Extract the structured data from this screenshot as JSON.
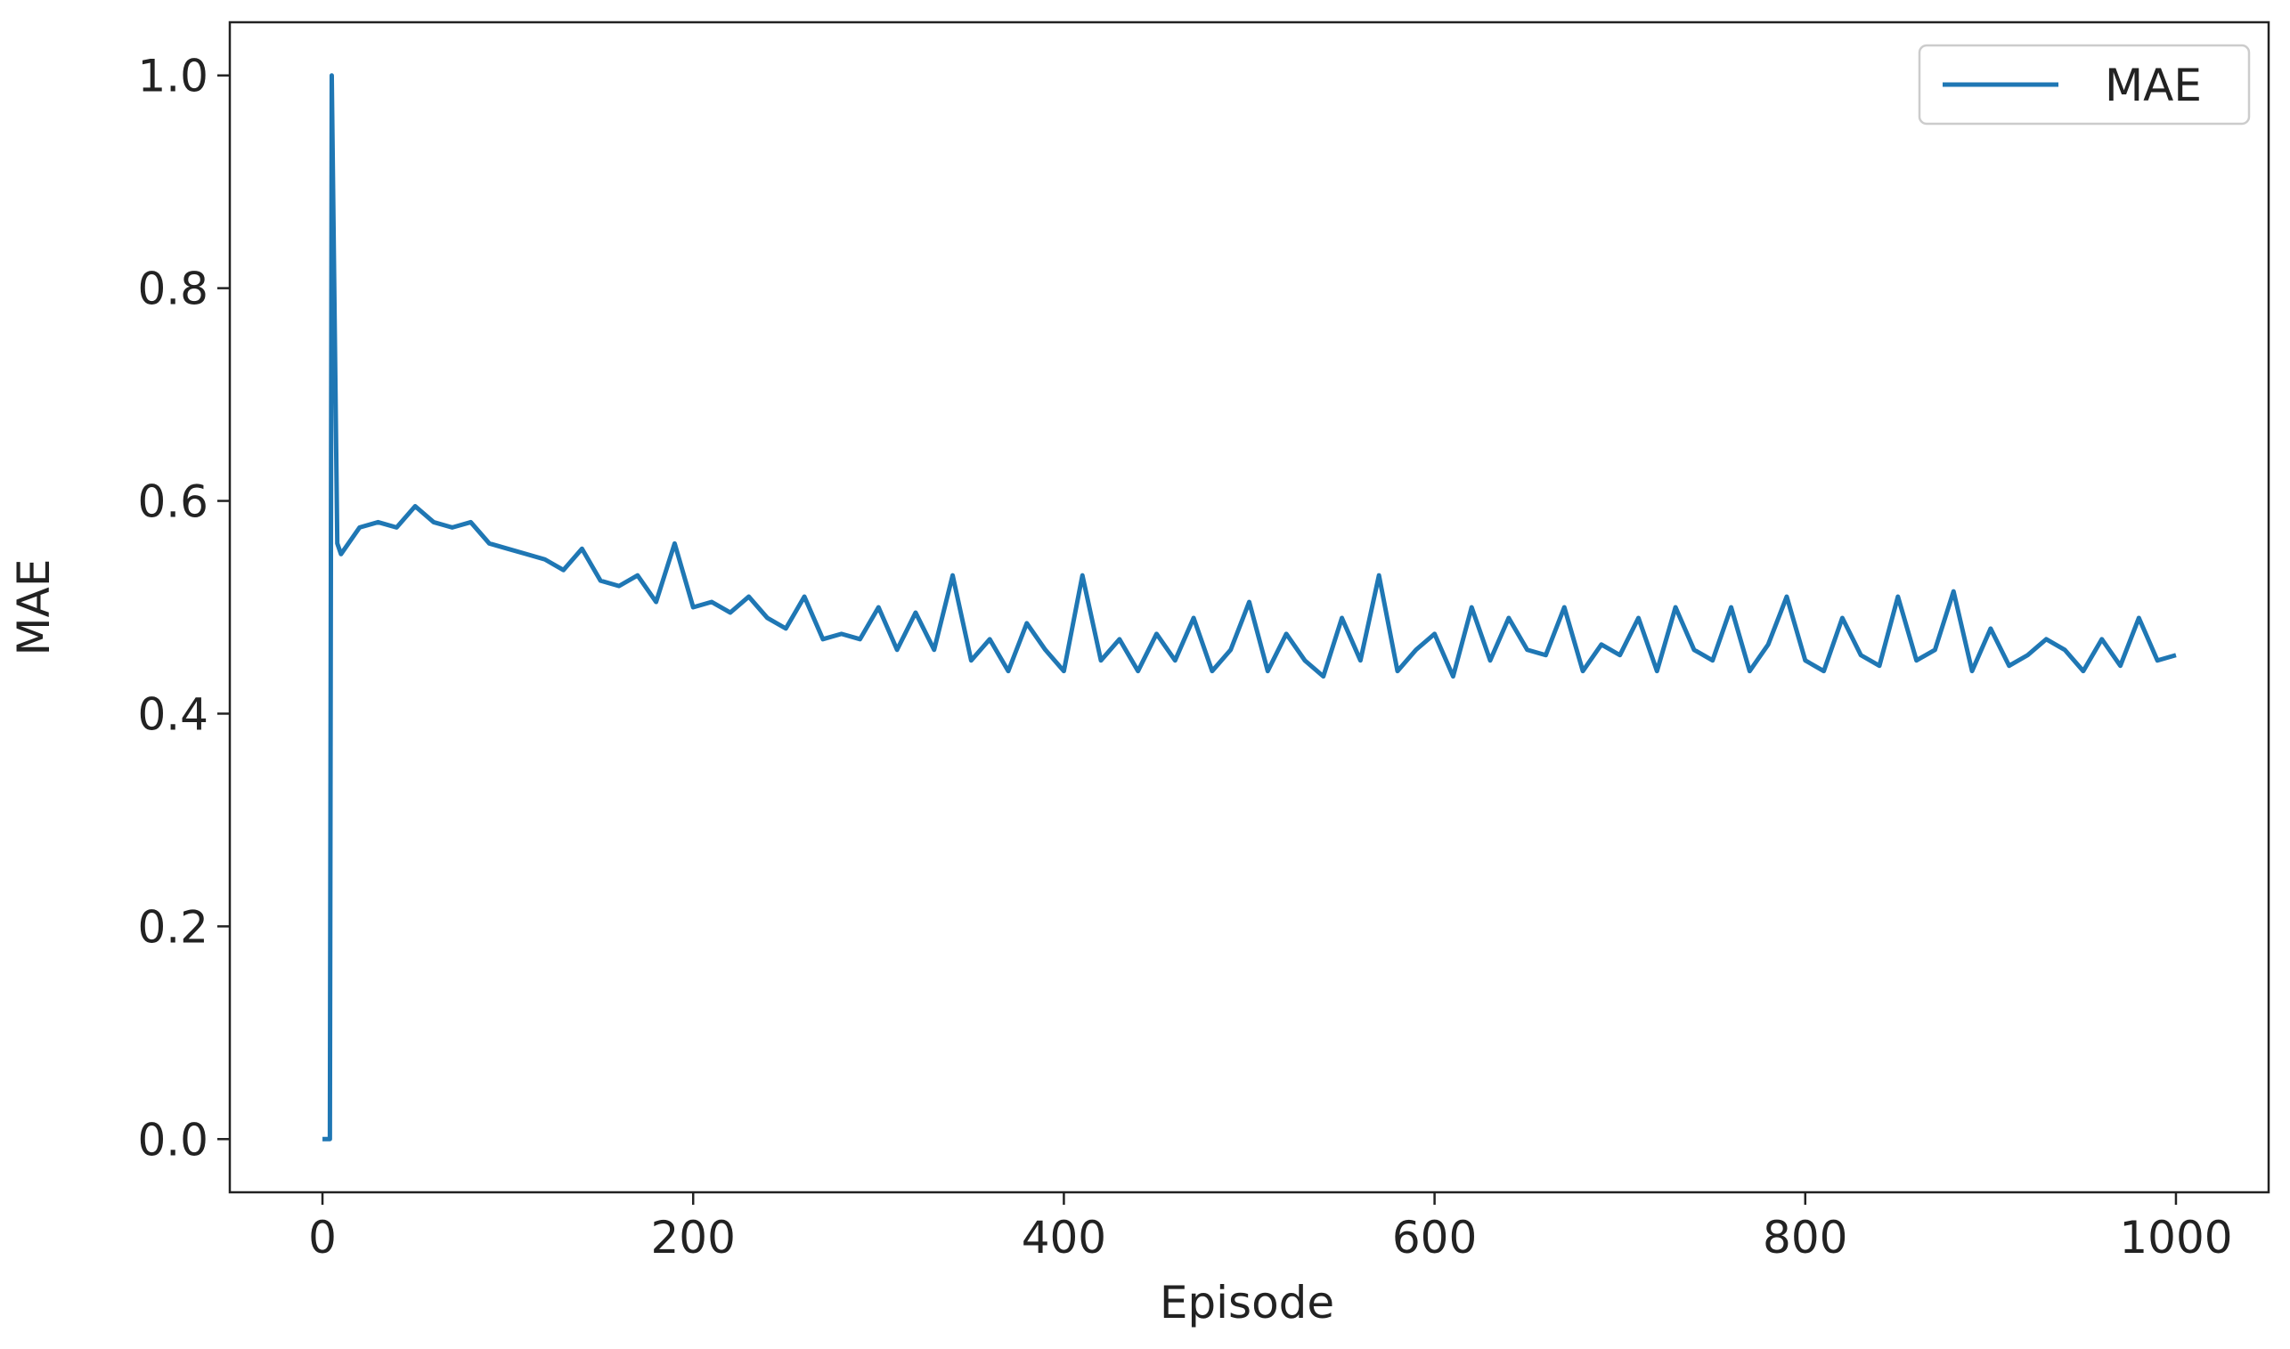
{
  "chart_data": {
    "type": "line",
    "xlabel": "Episode",
    "ylabel": "MAE",
    "x": [
      0,
      4,
      5,
      8,
      10,
      20,
      30,
      40,
      50,
      60,
      70,
      80,
      90,
      100,
      110,
      120,
      130,
      140,
      150,
      160,
      170,
      180,
      190,
      200,
      210,
      220,
      230,
      240,
      250,
      260,
      270,
      280,
      290,
      300,
      310,
      320,
      330,
      340,
      350,
      360,
      370,
      380,
      390,
      400,
      410,
      420,
      430,
      440,
      450,
      460,
      470,
      480,
      490,
      500,
      510,
      520,
      530,
      540,
      550,
      560,
      570,
      580,
      590,
      600,
      610,
      620,
      630,
      640,
      650,
      660,
      670,
      680,
      690,
      700,
      710,
      720,
      730,
      740,
      750,
      760,
      770,
      780,
      790,
      800,
      810,
      820,
      830,
      840,
      850,
      860,
      870,
      880,
      890,
      900,
      910,
      920,
      930,
      940,
      950,
      960,
      970,
      980,
      990,
      1000
    ],
    "series": [
      {
        "name": "MAE",
        "color": "#1f77b4",
        "values": [
          0,
          0,
          1.0,
          0.56,
          0.55,
          0.575,
          0.58,
          0.575,
          0.595,
          0.58,
          0.575,
          0.58,
          0.56,
          0.555,
          0.55,
          0.545,
          0.535,
          0.555,
          0.525,
          0.52,
          0.53,
          0.505,
          0.56,
          0.5,
          0.505,
          0.495,
          0.51,
          0.49,
          0.48,
          0.51,
          0.47,
          0.475,
          0.47,
          0.5,
          0.46,
          0.495,
          0.46,
          0.53,
          0.45,
          0.47,
          0.44,
          0.485,
          0.46,
          0.44,
          0.53,
          0.45,
          0.47,
          0.44,
          0.475,
          0.45,
          0.49,
          0.44,
          0.46,
          0.505,
          0.44,
          0.475,
          0.45,
          0.435,
          0.49,
          0.45,
          0.53,
          0.44,
          0.46,
          0.475,
          0.435,
          0.5,
          0.45,
          0.49,
          0.46,
          0.455,
          0.5,
          0.44,
          0.465,
          0.455,
          0.49,
          0.44,
          0.5,
          0.46,
          0.45,
          0.5,
          0.44,
          0.465,
          0.51,
          0.45,
          0.44,
          0.49,
          0.455,
          0.445,
          0.51,
          0.45,
          0.46,
          0.515,
          0.44,
          0.48,
          0.445,
          0.455,
          0.47,
          0.46,
          0.44,
          0.47,
          0.445,
          0.49,
          0.45,
          0.455
        ]
      }
    ],
    "xlim": [
      -50,
      1050
    ],
    "ylim": [
      -0.05,
      1.05
    ],
    "xticks": [
      0,
      200,
      400,
      600,
      800,
      1000
    ],
    "yticks": [
      {
        "value": 0,
        "label": "0.0"
      },
      0.2,
      0.4,
      0.6,
      0.8,
      {
        "value": 1,
        "label": "1.0"
      }
    ],
    "legend": "upper right",
    "grid": false
  }
}
